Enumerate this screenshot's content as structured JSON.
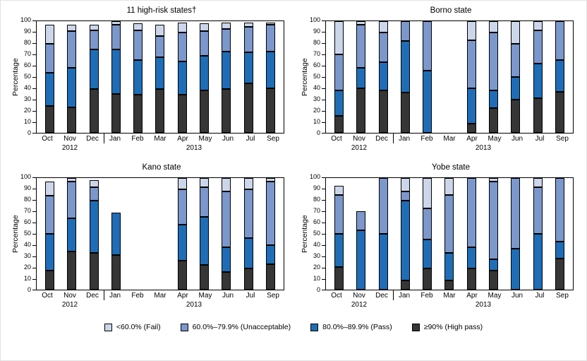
{
  "legend": [
    {
      "label": "<60.0% (Fail)",
      "color": "#ccd6ea"
    },
    {
      "label": "60.0%–79.9% (Unacceptable)",
      "color": "#7b97cb"
    },
    {
      "label": "80.0%–89.9% (Pass)",
      "color": "#1f6db6"
    },
    {
      "label": "≥90% (High pass)",
      "color": "#363636"
    }
  ],
  "chart_data": [
    {
      "type": "stacked-bar",
      "title": "11 high-risk states†",
      "ylabel": "Percentage",
      "ylim": [
        0,
        100
      ],
      "grid": false,
      "categories": [
        "Oct",
        "Nov",
        "Dec",
        "Jan",
        "Feb",
        "Mar",
        "Apr",
        "May",
        "Jun",
        "Jul",
        "Sep"
      ],
      "year_groups": [
        {
          "label": "2012",
          "span": 3
        },
        {
          "label": "2013",
          "span": 8
        }
      ],
      "series": [
        {
          "name": "≥90% (High pass)",
          "color": "#363636",
          "values": [
            24,
            23,
            39,
            35,
            34,
            39,
            34,
            38,
            39,
            44,
            40
          ]
        },
        {
          "name": "80.0%–89.9% (Pass)",
          "color": "#1f6db6",
          "values": [
            30,
            35,
            36,
            40,
            31,
            29,
            30,
            31,
            34,
            28,
            33
          ]
        },
        {
          "name": "60.0%–79.9% (Unacceptable)",
          "color": "#7b97cb",
          "values": [
            26,
            33,
            17,
            22,
            27,
            19,
            26,
            22,
            20,
            23,
            24
          ]
        },
        {
          "name": "<60.0% (Fail)",
          "color": "#ccd6ea",
          "values": [
            17,
            6,
            5,
            3,
            6,
            10,
            9,
            7,
            6,
            4,
            2
          ]
        }
      ]
    },
    {
      "type": "stacked-bar",
      "title": "Borno state",
      "ylabel": "Percentage",
      "ylim": [
        0,
        100
      ],
      "grid": false,
      "categories": [
        "Oct",
        "Nov",
        "Dec",
        "Jan",
        "Feb",
        "Mar",
        "Apr",
        "May",
        "Jun",
        "Jul",
        "Sep"
      ],
      "year_groups": [
        {
          "label": "2012",
          "span": 3
        },
        {
          "label": "2013",
          "span": 8
        }
      ],
      "series": [
        {
          "name": "≥90% (High pass)",
          "color": "#363636",
          "values": [
            15,
            40,
            38,
            36,
            0,
            0,
            8,
            22,
            30,
            31,
            37
          ]
        },
        {
          "name": "80.0%–89.9% (Pass)",
          "color": "#1f6db6",
          "values": [
            23,
            18,
            25,
            46,
            56,
            0,
            32,
            16,
            20,
            31,
            28
          ]
        },
        {
          "name": "60.0%–79.9% (Unacceptable)",
          "color": "#7b97cb",
          "values": [
            32,
            39,
            27,
            18,
            44,
            0,
            43,
            52,
            30,
            30,
            35
          ]
        },
        {
          "name": "<60.0% (Fail)",
          "color": "#ccd6ea",
          "values": [
            30,
            3,
            10,
            0,
            0,
            0,
            17,
            10,
            20,
            8,
            0
          ]
        }
      ]
    },
    {
      "type": "stacked-bar",
      "title": "Kano state",
      "ylabel": "Percentage",
      "ylim": [
        0,
        100
      ],
      "grid": false,
      "categories": [
        "Oct",
        "Nov",
        "Dec",
        "Jan",
        "Feb",
        "Mar",
        "Apr",
        "May",
        "Jun",
        "Jul",
        "Sep"
      ],
      "year_groups": [
        {
          "label": "2012",
          "span": 3
        },
        {
          "label": "2013",
          "span": 8
        }
      ],
      "series": [
        {
          "name": "≥90% (High pass)",
          "color": "#363636",
          "values": [
            17,
            34,
            33,
            31,
            0,
            0,
            26,
            22,
            16,
            19,
            23
          ]
        },
        {
          "name": "80.0%–89.9% (Pass)",
          "color": "#1f6db6",
          "values": [
            33,
            30,
            47,
            38,
            0,
            0,
            32,
            43,
            22,
            27,
            17
          ]
        },
        {
          "name": "60.0%–79.9% (Unacceptable)",
          "color": "#7b97cb",
          "values": [
            34,
            33,
            12,
            0,
            0,
            0,
            32,
            27,
            50,
            44,
            57
          ]
        },
        {
          "name": "<60.0% (Fail)",
          "color": "#ccd6ea",
          "values": [
            13,
            3,
            6,
            0,
            0,
            0,
            10,
            8,
            12,
            10,
            3
          ]
        }
      ]
    },
    {
      "type": "stacked-bar",
      "title": "Yobe state",
      "ylabel": "Percentage",
      "ylim": [
        0,
        100
      ],
      "grid": false,
      "categories": [
        "Oct",
        "Nov",
        "Dec",
        "Jan",
        "Feb",
        "Mar",
        "Apr",
        "May",
        "Jun",
        "Jul",
        "Sep"
      ],
      "year_groups": [
        {
          "label": "2012",
          "span": 3
        },
        {
          "label": "2013",
          "span": 8
        }
      ],
      "series": [
        {
          "name": "≥90% (High pass)",
          "color": "#363636",
          "values": [
            20,
            0,
            0,
            8,
            19,
            8,
            19,
            17,
            0,
            0,
            28
          ]
        },
        {
          "name": "80.0%–89.9% (Pass)",
          "color": "#1f6db6",
          "values": [
            30,
            53,
            50,
            72,
            26,
            25,
            19,
            10,
            37,
            50,
            15
          ]
        },
        {
          "name": "60.0%–79.9% (Unacceptable)",
          "color": "#7b97cb",
          "values": [
            35,
            17,
            50,
            8,
            28,
            52,
            62,
            70,
            63,
            42,
            57
          ]
        },
        {
          "name": "<60.0% (Fail)",
          "color": "#ccd6ea",
          "values": [
            8,
            0,
            0,
            12,
            27,
            15,
            0,
            3,
            0,
            8,
            0
          ]
        }
      ]
    }
  ],
  "axis": {
    "yticks": [
      0,
      10,
      20,
      30,
      40,
      50,
      60,
      70,
      80,
      90,
      100
    ]
  }
}
